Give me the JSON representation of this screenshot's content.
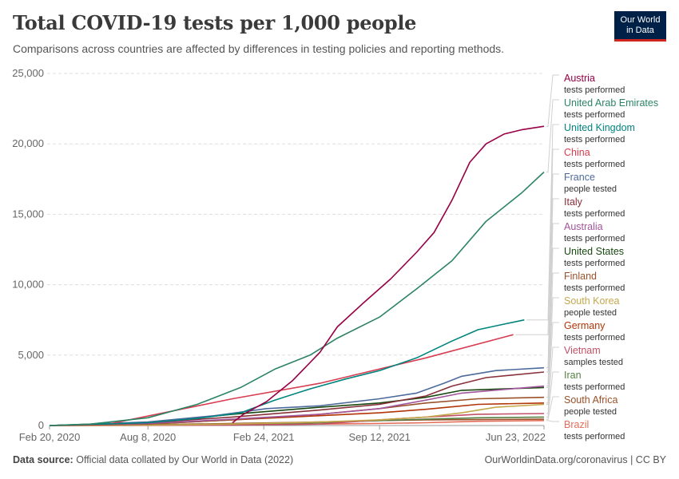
{
  "header": {
    "title": "Total COVID-19 tests per 1,000 people",
    "subtitle": "Comparisons across countries are affected by differences in testing policies and reporting methods.",
    "logo_line1": "Our World",
    "logo_line2": "in Data",
    "logo_bg": "#002147",
    "logo_accent": "#ce261e"
  },
  "footer": {
    "source_label": "Data source:",
    "source_text": "Official data collated by Our World in Data (2022)",
    "url": "OurWorldinData.org/coronavirus",
    "separator": " | ",
    "license": "CC BY"
  },
  "chart_data": {
    "type": "line",
    "title": "Total COVID-19 tests per 1,000 people",
    "ylim": [
      0,
      25000
    ],
    "yticks": [
      0,
      5000,
      10000,
      15000,
      20000,
      25000
    ],
    "ytick_labels": [
      "0",
      "5,000",
      "10,000",
      "15,000",
      "20,000",
      "25,000"
    ],
    "xlim": [
      "2020-02-20",
      "2022-06-23"
    ],
    "xticks": [
      "2020-02-20",
      "2020-08-08",
      "2021-02-24",
      "2021-09-12",
      "2022-06-23"
    ],
    "xtick_labels": [
      "Feb 20, 2020",
      "Aug 8, 2020",
      "Feb 24, 2021",
      "Sep 12, 2021",
      "Jun 23, 2022"
    ],
    "grid": "horizontal dashed",
    "legend": "right",
    "series": [
      {
        "name": "Austria",
        "unit": "tests performed",
        "color": "#970046",
        "points": [
          [
            "2021-01-01",
            200
          ],
          [
            "2021-01-20",
            800
          ],
          [
            "2021-03-01",
            1700
          ],
          [
            "2021-04-15",
            3200
          ],
          [
            "2021-06-01",
            5200
          ],
          [
            "2021-07-01",
            7000
          ],
          [
            "2021-08-15",
            8700
          ],
          [
            "2021-10-01",
            10400
          ],
          [
            "2021-11-15",
            12300
          ],
          [
            "2021-12-15",
            13700
          ],
          [
            "2022-01-15",
            16000
          ],
          [
            "2022-02-15",
            18700
          ],
          [
            "2022-03-15",
            20000
          ],
          [
            "2022-04-15",
            20700
          ],
          [
            "2022-05-15",
            21000
          ],
          [
            "2022-06-23",
            21250
          ]
        ]
      },
      {
        "name": "United Arab Emirates",
        "unit": "tests performed",
        "color": "#2c8465",
        "points": [
          [
            "2020-02-20",
            0
          ],
          [
            "2020-05-01",
            100
          ],
          [
            "2020-08-08",
            550
          ],
          [
            "2020-11-01",
            1500
          ],
          [
            "2021-01-15",
            2700
          ],
          [
            "2021-03-15",
            4000
          ],
          [
            "2021-05-15",
            5000
          ],
          [
            "2021-07-01",
            6200
          ],
          [
            "2021-09-12",
            7700
          ],
          [
            "2021-11-15",
            9700
          ],
          [
            "2022-01-15",
            11700
          ],
          [
            "2022-03-15",
            14500
          ],
          [
            "2022-05-15",
            16500
          ],
          [
            "2022-06-23",
            18000
          ]
        ]
      },
      {
        "name": "United Kingdom",
        "unit": "tests performed",
        "color": "#00847e",
        "points": [
          [
            "2020-02-20",
            0
          ],
          [
            "2020-08-08",
            200
          ],
          [
            "2020-11-01",
            500
          ],
          [
            "2021-01-15",
            900
          ],
          [
            "2021-03-15",
            1800
          ],
          [
            "2021-05-15",
            2600
          ],
          [
            "2021-07-15",
            3300
          ],
          [
            "2021-09-12",
            3900
          ],
          [
            "2021-11-15",
            4800
          ],
          [
            "2022-01-15",
            6000
          ],
          [
            "2022-03-01",
            6800
          ],
          [
            "2022-04-15",
            7200
          ],
          [
            "2022-05-20",
            7500
          ]
        ]
      },
      {
        "name": "China",
        "unit": "tests performed",
        "color": "#d73c50",
        "points": [
          [
            "2020-02-20",
            0
          ],
          [
            "2020-06-01",
            100
          ],
          [
            "2021-01-01",
            1900
          ],
          [
            "2021-06-01",
            3000
          ],
          [
            "2021-12-01",
            4800
          ],
          [
            "2022-05-01",
            6450
          ]
        ]
      },
      {
        "name": "France",
        "unit": "people tested",
        "color": "#4c6a9c",
        "points": [
          [
            "2020-02-20",
            0
          ],
          [
            "2020-08-08",
            250
          ],
          [
            "2020-12-01",
            700
          ],
          [
            "2021-03-01",
            1200
          ],
          [
            "2021-06-01",
            1400
          ],
          [
            "2021-09-12",
            1900
          ],
          [
            "2021-11-15",
            2300
          ],
          [
            "2022-01-01",
            3000
          ],
          [
            "2022-02-01",
            3500
          ],
          [
            "2022-04-01",
            3900
          ],
          [
            "2022-06-23",
            4100
          ]
        ]
      },
      {
        "name": "Italy",
        "unit": "tests performed",
        "color": "#883039",
        "points": [
          [
            "2020-02-20",
            0
          ],
          [
            "2020-08-08",
            200
          ],
          [
            "2021-01-01",
            600
          ],
          [
            "2021-06-01",
            1100
          ],
          [
            "2021-09-12",
            1500
          ],
          [
            "2021-12-01",
            2100
          ],
          [
            "2022-01-15",
            2800
          ],
          [
            "2022-03-15",
            3400
          ],
          [
            "2022-06-23",
            3800
          ]
        ]
      },
      {
        "name": "Australia",
        "unit": "tests performed",
        "color": "#a2559c",
        "points": [
          [
            "2020-02-20",
            0
          ],
          [
            "2020-08-08",
            150
          ],
          [
            "2021-01-01",
            450
          ],
          [
            "2021-06-01",
            800
          ],
          [
            "2021-09-12",
            1200
          ],
          [
            "2021-12-01",
            1800
          ],
          [
            "2022-02-01",
            2300
          ],
          [
            "2022-06-23",
            2800
          ]
        ]
      },
      {
        "name": "United States",
        "unit": "tests performed",
        "color": "#18470f",
        "points": [
          [
            "2020-02-20",
            0
          ],
          [
            "2020-08-08",
            200
          ],
          [
            "2021-01-01",
            800
          ],
          [
            "2021-06-01",
            1300
          ],
          [
            "2021-09-12",
            1600
          ],
          [
            "2021-12-01",
            2000
          ],
          [
            "2022-02-01",
            2500
          ],
          [
            "2022-06-23",
            2700
          ]
        ]
      },
      {
        "name": "Finland",
        "unit": "tests performed",
        "color": "#9a5129",
        "points": [
          [
            "2020-02-20",
            0
          ],
          [
            "2020-08-08",
            100
          ],
          [
            "2021-01-01",
            400
          ],
          [
            "2021-06-01",
            800
          ],
          [
            "2021-09-12",
            1200
          ],
          [
            "2021-12-01",
            1600
          ],
          [
            "2022-03-01",
            1900
          ],
          [
            "2022-06-23",
            2000
          ]
        ]
      },
      {
        "name": "South Korea",
        "unit": "people tested",
        "color": "#c4a84c",
        "points": [
          [
            "2020-02-20",
            0
          ],
          [
            "2020-08-08",
            30
          ],
          [
            "2021-01-01",
            100
          ],
          [
            "2021-06-01",
            250
          ],
          [
            "2021-09-12",
            400
          ],
          [
            "2021-12-01",
            600
          ],
          [
            "2022-02-01",
            900
          ],
          [
            "2022-04-01",
            1300
          ],
          [
            "2022-06-23",
            1500
          ]
        ]
      },
      {
        "name": "Germany",
        "unit": "tests performed",
        "color": "#b13507",
        "points": [
          [
            "2020-02-20",
            0
          ],
          [
            "2020-08-08",
            100
          ],
          [
            "2021-01-01",
            400
          ],
          [
            "2021-06-01",
            700
          ],
          [
            "2021-09-12",
            900
          ],
          [
            "2021-12-01",
            1150
          ],
          [
            "2022-03-01",
            1500
          ],
          [
            "2022-06-23",
            1600
          ]
        ]
      },
      {
        "name": "Vietnam",
        "unit": "samples tested",
        "color": "#c15065",
        "points": [
          [
            "2020-02-20",
            0
          ],
          [
            "2020-08-08",
            10
          ],
          [
            "2021-01-01",
            30
          ],
          [
            "2021-06-01",
            100
          ],
          [
            "2021-09-12",
            400
          ],
          [
            "2021-12-01",
            600
          ],
          [
            "2022-03-01",
            800
          ],
          [
            "2022-06-23",
            850
          ]
        ]
      },
      {
        "name": "Iran",
        "unit": "tests performed",
        "color": "#578145",
        "points": [
          [
            "2020-02-20",
            0
          ],
          [
            "2020-08-08",
            30
          ],
          [
            "2021-01-01",
            100
          ],
          [
            "2021-06-01",
            200
          ],
          [
            "2021-09-12",
            350
          ],
          [
            "2021-12-01",
            450
          ],
          [
            "2022-03-01",
            550
          ],
          [
            "2022-06-23",
            600
          ]
        ]
      },
      {
        "name": "South Africa",
        "unit": "people tested",
        "color": "#9a5129",
        "points": [
          [
            "2020-02-20",
            0
          ],
          [
            "2020-08-08",
            50
          ],
          [
            "2021-01-01",
            150
          ],
          [
            "2021-06-01",
            250
          ],
          [
            "2021-09-12",
            350
          ],
          [
            "2021-12-01",
            400
          ],
          [
            "2022-03-01",
            420
          ],
          [
            "2022-06-23",
            450
          ]
        ]
      },
      {
        "name": "Brazil",
        "unit": "tests performed",
        "color": "#e56e5a",
        "points": [
          [
            "2020-02-20",
            0
          ],
          [
            "2020-08-08",
            20
          ],
          [
            "2021-01-01",
            60
          ],
          [
            "2021-06-01",
            100
          ],
          [
            "2021-09-12",
            150
          ],
          [
            "2021-12-01",
            200
          ],
          [
            "2022-03-01",
            300
          ],
          [
            "2022-06-23",
            350
          ]
        ]
      }
    ]
  }
}
